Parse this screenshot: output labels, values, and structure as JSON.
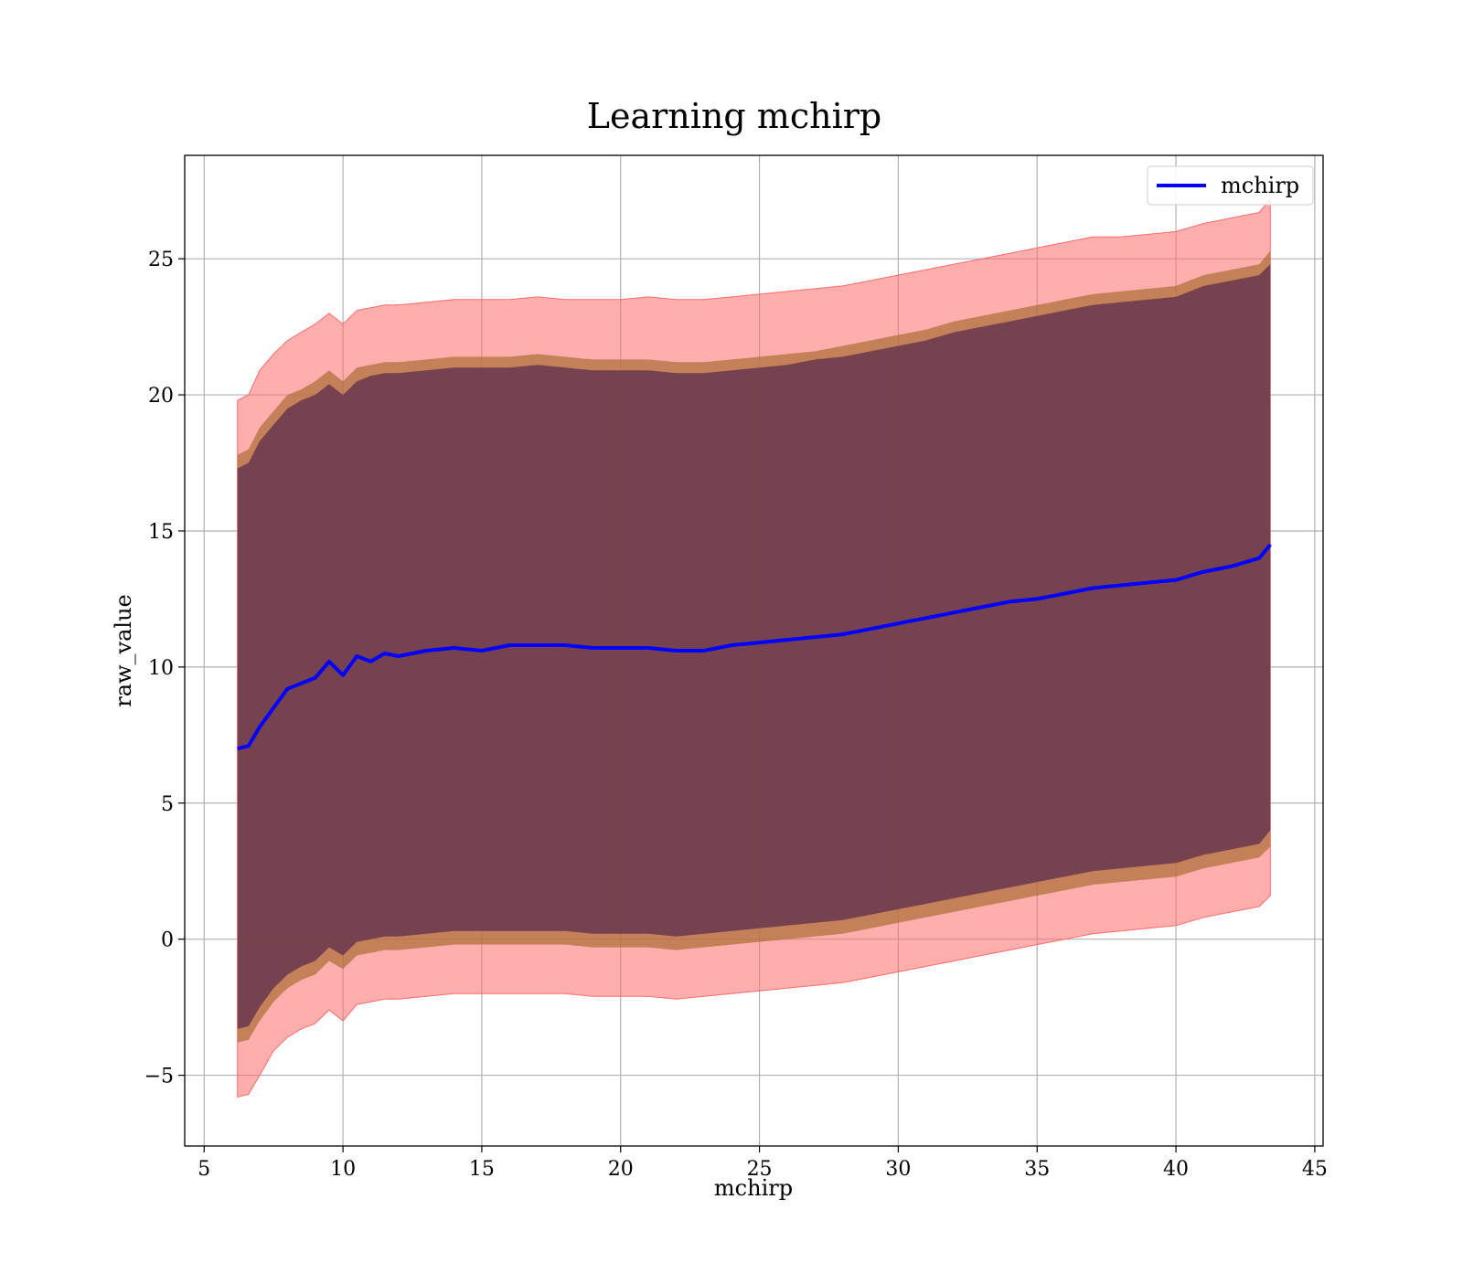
{
  "chart_data": {
    "type": "line",
    "title": "Learning mchirp",
    "xlabel": "mchirp",
    "ylabel": "raw_value",
    "xlim": [
      4.3,
      45.3
    ],
    "ylim": [
      -7.6,
      28.8
    ],
    "xticks": [
      5,
      10,
      15,
      20,
      25,
      30,
      35,
      40,
      45
    ],
    "yticks": [
      -5,
      0,
      5,
      10,
      15,
      20,
      25
    ],
    "grid": true,
    "legend": {
      "position": "top-right",
      "entries": [
        "mchirp"
      ]
    },
    "colors": {
      "line": "#0000ff",
      "band_outer": "#ff6b6b",
      "band_middle": "#b0703c",
      "band_inner": "#5e2e4c"
    },
    "x": [
      6.2,
      6.6,
      7.0,
      7.5,
      8.0,
      8.5,
      9.0,
      9.5,
      10.0,
      10.5,
      11.0,
      11.5,
      12.0,
      13.0,
      14.0,
      15.0,
      16.0,
      17.0,
      18.0,
      19.0,
      20.0,
      21.0,
      22.0,
      23.0,
      24.0,
      25.0,
      26.0,
      27.0,
      28.0,
      29.0,
      30.0,
      31.0,
      32.0,
      33.0,
      34.0,
      35.0,
      36.0,
      37.0,
      38.0,
      39.0,
      40.0,
      41.0,
      42.0,
      43.0,
      43.4
    ],
    "series": [
      {
        "name": "mchirp",
        "values": [
          7.0,
          7.1,
          7.8,
          8.5,
          9.2,
          9.4,
          9.6,
          10.2,
          9.7,
          10.4,
          10.2,
          10.5,
          10.4,
          10.6,
          10.7,
          10.6,
          10.8,
          10.8,
          10.8,
          10.7,
          10.7,
          10.7,
          10.6,
          10.6,
          10.8,
          10.9,
          11.0,
          11.1,
          11.2,
          11.4,
          11.6,
          11.8,
          12.0,
          12.2,
          12.4,
          12.5,
          12.7,
          12.9,
          13.0,
          13.1,
          13.2,
          13.5,
          13.7,
          14.0,
          14.5
        ],
        "band_outer_upper": [
          19.8,
          20.0,
          20.9,
          21.5,
          22.0,
          22.3,
          22.6,
          23.0,
          22.6,
          23.1,
          23.2,
          23.3,
          23.3,
          23.4,
          23.5,
          23.5,
          23.5,
          23.6,
          23.5,
          23.5,
          23.5,
          23.6,
          23.5,
          23.5,
          23.6,
          23.7,
          23.8,
          23.9,
          24.0,
          24.2,
          24.4,
          24.6,
          24.8,
          25.0,
          25.2,
          25.4,
          25.6,
          25.8,
          25.8,
          25.9,
          26.0,
          26.3,
          26.5,
          26.7,
          27.2
        ],
        "band_middle_upper": [
          17.8,
          18.0,
          18.8,
          19.4,
          20.0,
          20.2,
          20.5,
          20.9,
          20.5,
          21.0,
          21.1,
          21.2,
          21.2,
          21.3,
          21.4,
          21.4,
          21.4,
          21.5,
          21.4,
          21.3,
          21.3,
          21.3,
          21.2,
          21.2,
          21.3,
          21.4,
          21.5,
          21.6,
          21.8,
          22.0,
          22.2,
          22.4,
          22.7,
          22.9,
          23.1,
          23.3,
          23.5,
          23.7,
          23.8,
          23.9,
          24.0,
          24.4,
          24.6,
          24.8,
          25.3
        ],
        "band_inner_upper": [
          17.3,
          17.5,
          18.3,
          18.9,
          19.5,
          19.8,
          20.0,
          20.4,
          20.0,
          20.5,
          20.7,
          20.8,
          20.8,
          20.9,
          21.0,
          21.0,
          21.0,
          21.1,
          21.0,
          20.9,
          20.9,
          20.9,
          20.8,
          20.8,
          20.9,
          21.0,
          21.1,
          21.3,
          21.4,
          21.6,
          21.8,
          22.0,
          22.3,
          22.5,
          22.7,
          22.9,
          23.1,
          23.3,
          23.4,
          23.5,
          23.6,
          24.0,
          24.2,
          24.4,
          24.8
        ],
        "band_inner_lower": [
          -3.3,
          -3.2,
          -2.5,
          -1.8,
          -1.3,
          -1.0,
          -0.8,
          -0.3,
          -0.6,
          -0.1,
          0.0,
          0.1,
          0.1,
          0.2,
          0.3,
          0.3,
          0.3,
          0.3,
          0.3,
          0.2,
          0.2,
          0.2,
          0.1,
          0.2,
          0.3,
          0.4,
          0.5,
          0.6,
          0.7,
          0.9,
          1.1,
          1.3,
          1.5,
          1.7,
          1.9,
          2.1,
          2.3,
          2.5,
          2.6,
          2.7,
          2.8,
          3.1,
          3.3,
          3.5,
          4.0
        ],
        "band_middle_lower": [
          -3.8,
          -3.7,
          -3.0,
          -2.3,
          -1.8,
          -1.5,
          -1.3,
          -0.8,
          -1.1,
          -0.6,
          -0.5,
          -0.4,
          -0.4,
          -0.3,
          -0.2,
          -0.2,
          -0.2,
          -0.2,
          -0.2,
          -0.3,
          -0.3,
          -0.3,
          -0.4,
          -0.3,
          -0.2,
          -0.1,
          0.0,
          0.1,
          0.2,
          0.4,
          0.6,
          0.8,
          1.0,
          1.2,
          1.4,
          1.6,
          1.8,
          2.0,
          2.1,
          2.2,
          2.3,
          2.6,
          2.8,
          3.0,
          3.4
        ],
        "band_outer_lower": [
          -5.8,
          -5.7,
          -5.0,
          -4.1,
          -3.6,
          -3.3,
          -3.1,
          -2.6,
          -3.0,
          -2.4,
          -2.3,
          -2.2,
          -2.2,
          -2.1,
          -2.0,
          -2.0,
          -2.0,
          -2.0,
          -2.0,
          -2.1,
          -2.1,
          -2.1,
          -2.2,
          -2.1,
          -2.0,
          -1.9,
          -1.8,
          -1.7,
          -1.6,
          -1.4,
          -1.2,
          -1.0,
          -0.8,
          -0.6,
          -0.4,
          -0.2,
          0.0,
          0.2,
          0.3,
          0.4,
          0.5,
          0.8,
          1.0,
          1.2,
          1.6
        ]
      }
    ]
  }
}
